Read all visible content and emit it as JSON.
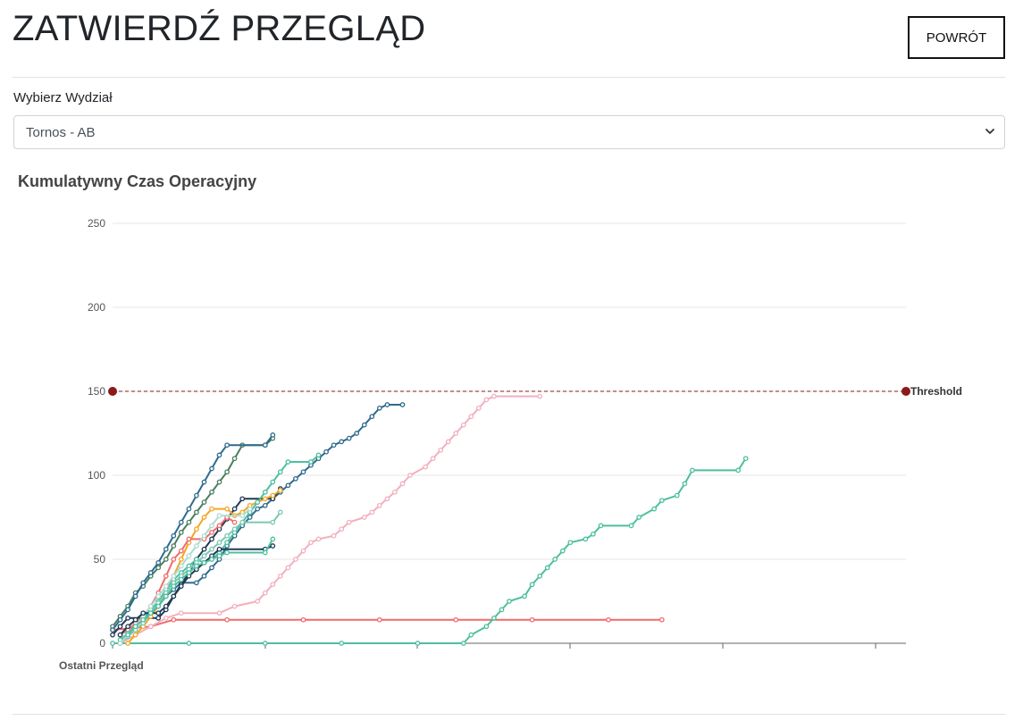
{
  "header": {
    "title": "ZATWIERDŹ PRZEGLĄD",
    "back_label": "POWRÓT"
  },
  "department": {
    "label": "Wybierz Wydział",
    "selected": "Tornos - AB"
  },
  "chart_title": "Kumulatywny Czas Operacyjny",
  "icons": {
    "select": "chevron-down-icon"
  },
  "chart_data": {
    "type": "line",
    "title": "Kumulatywny Czas Operacyjny",
    "xlabel": "Ostatni Przegląd",
    "ylabel": "",
    "ylim": [
      0,
      250
    ],
    "yticks": [
      0,
      50,
      100,
      150,
      200,
      250
    ],
    "xlim": [
      0,
      104
    ],
    "grid": true,
    "threshold": {
      "label": "Threshold",
      "value": 150,
      "color": "#8b1a1a"
    },
    "series": [
      {
        "color": "#f06b6b",
        "points": [
          [
            0,
            8
          ],
          [
            5,
            10
          ],
          [
            8,
            14
          ],
          [
            15,
            14
          ],
          [
            25,
            14
          ],
          [
            35,
            14
          ],
          [
            45,
            14
          ],
          [
            55,
            14
          ],
          [
            65,
            14
          ],
          [
            72,
            14
          ]
        ]
      },
      {
        "color": "#4dbf9f",
        "points": [
          [
            0,
            0
          ],
          [
            10,
            0
          ],
          [
            20,
            0
          ],
          [
            30,
            0
          ],
          [
            40,
            0
          ],
          [
            46,
            0
          ],
          [
            47,
            5
          ],
          [
            49,
            10
          ],
          [
            50,
            15
          ],
          [
            51,
            20
          ],
          [
            52,
            25
          ],
          [
            54,
            28
          ],
          [
            55,
            35
          ],
          [
            56,
            40
          ],
          [
            57,
            45
          ],
          [
            58,
            50
          ],
          [
            59,
            55
          ],
          [
            60,
            60
          ],
          [
            62,
            62
          ],
          [
            63,
            65
          ],
          [
            64,
            70
          ],
          [
            68,
            70
          ],
          [
            69,
            75
          ],
          [
            71,
            80
          ],
          [
            72,
            85
          ],
          [
            74,
            88
          ],
          [
            75,
            95
          ],
          [
            76,
            103
          ],
          [
            82,
            103
          ],
          [
            83,
            110
          ]
        ]
      },
      {
        "color": "#f3afbd",
        "points": [
          [
            1,
            0
          ],
          [
            3,
            5
          ],
          [
            5,
            10
          ],
          [
            7,
            15
          ],
          [
            9,
            18
          ],
          [
            14,
            18
          ],
          [
            16,
            22
          ],
          [
            19,
            25
          ],
          [
            20,
            30
          ],
          [
            21,
            35
          ],
          [
            22,
            40
          ],
          [
            23,
            45
          ],
          [
            24,
            50
          ],
          [
            25,
            55
          ],
          [
            26,
            60
          ],
          [
            27,
            62
          ],
          [
            29,
            64
          ],
          [
            30,
            68
          ],
          [
            31,
            72
          ],
          [
            33,
            75
          ],
          [
            34,
            78
          ],
          [
            35,
            82
          ],
          [
            36,
            86
          ],
          [
            37,
            90
          ],
          [
            38,
            95
          ],
          [
            39,
            100
          ],
          [
            41,
            105
          ],
          [
            42,
            110
          ],
          [
            43,
            115
          ],
          [
            44,
            120
          ],
          [
            45,
            125
          ],
          [
            46,
            130
          ],
          [
            47,
            135
          ],
          [
            48,
            140
          ],
          [
            49,
            145
          ],
          [
            50,
            147
          ],
          [
            56,
            147
          ]
        ]
      },
      {
        "color": "#2e6b8e",
        "points": [
          [
            1,
            0
          ],
          [
            2,
            5
          ],
          [
            3,
            10
          ],
          [
            4,
            15
          ],
          [
            5,
            18
          ],
          [
            6,
            22
          ],
          [
            7,
            28
          ],
          [
            8,
            32
          ],
          [
            9,
            36
          ],
          [
            11,
            36
          ],
          [
            12,
            40
          ],
          [
            13,
            45
          ],
          [
            14,
            50
          ],
          [
            15,
            58
          ],
          [
            16,
            64
          ],
          [
            17,
            70
          ],
          [
            18,
            75
          ],
          [
            19,
            80
          ],
          [
            20,
            82
          ],
          [
            21,
            86
          ],
          [
            22,
            90
          ],
          [
            23,
            94
          ],
          [
            24,
            98
          ],
          [
            25,
            102
          ],
          [
            26,
            106
          ],
          [
            27,
            110
          ],
          [
            28,
            114
          ],
          [
            29,
            118
          ],
          [
            30,
            120
          ],
          [
            31,
            122
          ],
          [
            32,
            125
          ],
          [
            33,
            130
          ],
          [
            34,
            135
          ],
          [
            35,
            140
          ],
          [
            36,
            142
          ],
          [
            38,
            142
          ]
        ]
      },
      {
        "color": "#1f3a55",
        "points": [
          [
            0,
            5
          ],
          [
            1,
            10
          ],
          [
            2,
            15
          ],
          [
            6,
            15
          ],
          [
            7,
            20
          ],
          [
            8,
            28
          ],
          [
            9,
            35
          ],
          [
            10,
            42
          ],
          [
            11,
            50
          ],
          [
            12,
            56
          ],
          [
            13,
            62
          ],
          [
            14,
            68
          ],
          [
            15,
            74
          ],
          [
            16,
            80
          ],
          [
            17,
            86
          ],
          [
            21,
            86
          ],
          [
            22,
            92
          ]
        ]
      },
      {
        "color": "#f5a623",
        "points": [
          [
            2,
            0
          ],
          [
            3,
            5
          ],
          [
            4,
            10
          ],
          [
            5,
            16
          ],
          [
            6,
            22
          ],
          [
            7,
            30
          ],
          [
            8,
            40
          ],
          [
            9,
            50
          ],
          [
            10,
            60
          ],
          [
            11,
            68
          ],
          [
            12,
            75
          ],
          [
            13,
            80
          ],
          [
            15,
            80
          ],
          [
            16,
            76
          ],
          [
            17,
            78
          ],
          [
            18,
            82
          ],
          [
            19,
            84
          ],
          [
            20,
            86
          ],
          [
            21,
            88
          ],
          [
            22,
            91
          ]
        ]
      },
      {
        "color": "#f06b6b",
        "points": [
          [
            1,
            5
          ],
          [
            2,
            8
          ],
          [
            3,
            12
          ],
          [
            4,
            16
          ],
          [
            5,
            22
          ],
          [
            6,
            30
          ],
          [
            7,
            40
          ],
          [
            8,
            50
          ],
          [
            9,
            55
          ],
          [
            10,
            62
          ],
          [
            12,
            62
          ],
          [
            13,
            66
          ],
          [
            14,
            70
          ],
          [
            15,
            75
          ],
          [
            16,
            72
          ]
        ]
      },
      {
        "color": "#4dbf9f",
        "points": [
          [
            1,
            2
          ],
          [
            2,
            6
          ],
          [
            3,
            10
          ],
          [
            4,
            15
          ],
          [
            5,
            20
          ],
          [
            6,
            25
          ],
          [
            7,
            32
          ],
          [
            8,
            38
          ],
          [
            9,
            42
          ],
          [
            10,
            46
          ],
          [
            11,
            50
          ],
          [
            12,
            48
          ],
          [
            13,
            50
          ],
          [
            14,
            54
          ],
          [
            15,
            60
          ],
          [
            16,
            66
          ],
          [
            17,
            72
          ],
          [
            18,
            78
          ],
          [
            19,
            84
          ],
          [
            20,
            90
          ],
          [
            21,
            96
          ],
          [
            22,
            102
          ],
          [
            23,
            108
          ],
          [
            26,
            108
          ],
          [
            27,
            112
          ]
        ]
      },
      {
        "color": "#7bc8b3",
        "points": [
          [
            1,
            0
          ],
          [
            2,
            4
          ],
          [
            3,
            8
          ],
          [
            4,
            12
          ],
          [
            5,
            18
          ],
          [
            6,
            24
          ],
          [
            7,
            30
          ],
          [
            8,
            36
          ],
          [
            9,
            40
          ],
          [
            10,
            44
          ],
          [
            11,
            48
          ],
          [
            12,
            52
          ],
          [
            13,
            56
          ],
          [
            14,
            60
          ],
          [
            15,
            64
          ],
          [
            16,
            68
          ],
          [
            17,
            72
          ],
          [
            21,
            72
          ],
          [
            22,
            78
          ]
        ]
      },
      {
        "color": "#4a7e5f",
        "points": [
          [
            0,
            10
          ],
          [
            1,
            16
          ],
          [
            2,
            22
          ],
          [
            3,
            30
          ],
          [
            4,
            34
          ],
          [
            5,
            40
          ],
          [
            6,
            45
          ],
          [
            7,
            50
          ],
          [
            8,
            58
          ],
          [
            9,
            66
          ],
          [
            10,
            72
          ],
          [
            11,
            78
          ],
          [
            12,
            84
          ],
          [
            13,
            90
          ],
          [
            14,
            96
          ],
          [
            15,
            102
          ],
          [
            16,
            110
          ],
          [
            17,
            118
          ],
          [
            20,
            118
          ],
          [
            21,
            122
          ]
        ]
      },
      {
        "color": "#b0dbcf",
        "points": [
          [
            1,
            0
          ],
          [
            2,
            5
          ],
          [
            3,
            10
          ],
          [
            4,
            16
          ],
          [
            5,
            22
          ],
          [
            6,
            28
          ],
          [
            7,
            34
          ],
          [
            8,
            40
          ],
          [
            9,
            46
          ],
          [
            10,
            52
          ],
          [
            11,
            58
          ],
          [
            12,
            64
          ],
          [
            13,
            70
          ],
          [
            14,
            76
          ],
          [
            17,
            76
          ],
          [
            18,
            80
          ]
        ]
      },
      {
        "color": "#1f3a55",
        "points": [
          [
            1,
            5
          ],
          [
            2,
            10
          ],
          [
            3,
            14
          ],
          [
            4,
            18
          ],
          [
            6,
            18
          ],
          [
            7,
            22
          ],
          [
            8,
            28
          ],
          [
            9,
            34
          ],
          [
            10,
            40
          ],
          [
            11,
            44
          ],
          [
            12,
            48
          ],
          [
            13,
            52
          ],
          [
            14,
            56
          ],
          [
            20,
            56
          ],
          [
            21,
            58
          ]
        ]
      },
      {
        "color": "#4dbf9f",
        "points": [
          [
            2,
            5
          ],
          [
            3,
            10
          ],
          [
            4,
            14
          ],
          [
            5,
            18
          ],
          [
            6,
            22
          ],
          [
            7,
            28
          ],
          [
            8,
            34
          ],
          [
            9,
            38
          ],
          [
            10,
            42
          ],
          [
            11,
            46
          ],
          [
            12,
            48
          ],
          [
            13,
            50
          ],
          [
            14,
            52
          ],
          [
            15,
            54
          ],
          [
            20,
            54
          ],
          [
            21,
            62
          ]
        ]
      },
      {
        "color": "#2e6b8e",
        "points": [
          [
            0,
            8
          ],
          [
            1,
            14
          ],
          [
            2,
            20
          ],
          [
            3,
            28
          ],
          [
            4,
            36
          ],
          [
            5,
            42
          ],
          [
            6,
            48
          ],
          [
            7,
            56
          ],
          [
            8,
            64
          ],
          [
            9,
            72
          ],
          [
            10,
            80
          ],
          [
            11,
            88
          ],
          [
            12,
            96
          ],
          [
            13,
            104
          ],
          [
            14,
            112
          ],
          [
            15,
            118
          ],
          [
            20,
            118
          ],
          [
            21,
            124
          ]
        ]
      }
    ]
  }
}
